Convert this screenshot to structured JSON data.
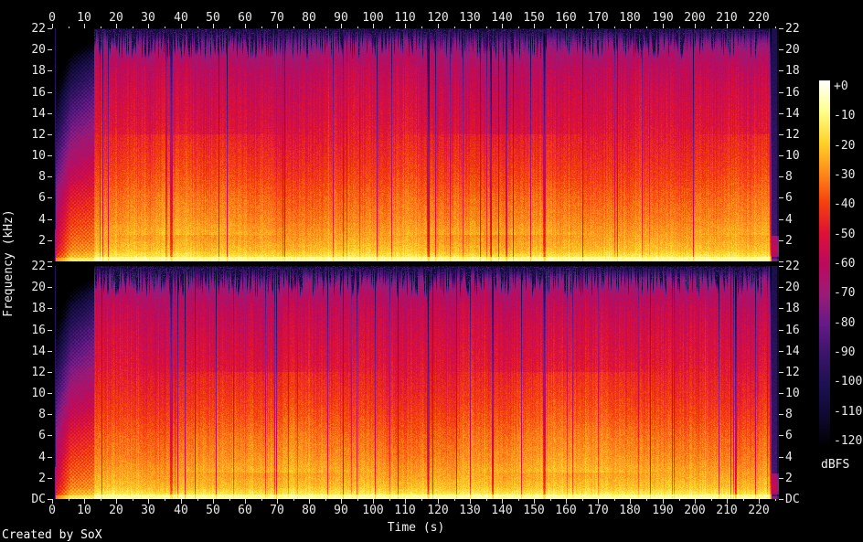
{
  "credit": "Created by SoX",
  "axes": {
    "time": {
      "label": "Time (s)",
      "tick_labels": [
        "0",
        "10",
        "20",
        "30",
        "40",
        "50",
        "60",
        "70",
        "80",
        "90",
        "100",
        "110",
        "120",
        "130",
        "140",
        "150",
        "160",
        "170",
        "180",
        "190",
        "200",
        "210",
        "220"
      ]
    },
    "frequency": {
      "label": "Frequency (kHz)",
      "tick_labels": [
        "22",
        "20",
        "18",
        "16",
        "14",
        "12",
        "10",
        "8",
        "6",
        "4",
        "2"
      ],
      "dc_label": "DC"
    }
  },
  "colorbar": {
    "unit": "dBFS",
    "tick_labels": [
      "+0",
      "-10",
      "-20",
      "-30",
      "-40",
      "-50",
      "-60",
      "-70",
      "-80",
      "-90",
      "-100",
      "-110",
      "-120"
    ]
  },
  "chart_data": {
    "type": "heatmap",
    "subtype": "audio-spectrogram",
    "title": "",
    "xlabel": "Time (s)",
    "ylabel": "Frequency (kHz)",
    "x_range_s": [
      0,
      226
    ],
    "x_tick_step_s": 10,
    "y_range_khz": [
      0,
      22
    ],
    "y_tick_step_khz": 2,
    "channels": 2,
    "grid": false,
    "colorbar_label": "dBFS",
    "colorbar_range_db": [
      0,
      -120
    ],
    "palette_stops": [
      {
        "db": 0,
        "color": "#ffffff"
      },
      {
        "db": -10,
        "color": "#ffff8c"
      },
      {
        "db": -20,
        "color": "#ffd42a"
      },
      {
        "db": -30,
        "color": "#ff8c1a"
      },
      {
        "db": -40,
        "color": "#f5400d"
      },
      {
        "db": -50,
        "color": "#dd1137"
      },
      {
        "db": -60,
        "color": "#bb0a5c"
      },
      {
        "db": -70,
        "color": "#9b1b77"
      },
      {
        "db": -80,
        "color": "#641a87"
      },
      {
        "db": -90,
        "color": "#3a1468"
      },
      {
        "db": -100,
        "color": "#1d1050"
      },
      {
        "db": -110,
        "color": "#0e0930"
      },
      {
        "db": -120,
        "color": "#000000"
      }
    ],
    "spectrum_profile_db": [
      [
        0,
        -6
      ],
      [
        0.4,
        -15
      ],
      [
        1,
        -22
      ],
      [
        2,
        -26
      ],
      [
        3,
        -29
      ],
      [
        4,
        -32
      ],
      [
        6,
        -36
      ],
      [
        8,
        -41
      ],
      [
        10,
        -45
      ],
      [
        13,
        -50
      ],
      [
        16,
        -54
      ],
      [
        18,
        -58
      ],
      [
        19.5,
        -64
      ],
      [
        20.6,
        -73
      ],
      [
        21.3,
        -81
      ],
      [
        22,
        -89
      ]
    ],
    "events": {
      "silence_end_s": 1,
      "fade_in_s": [
        1,
        13
      ],
      "music_start_s": 13,
      "gap_times_s": [
        37,
        117,
        153
      ],
      "music_end_s": 223
    },
    "channel_seeds": [
      1337,
      9001
    ]
  }
}
